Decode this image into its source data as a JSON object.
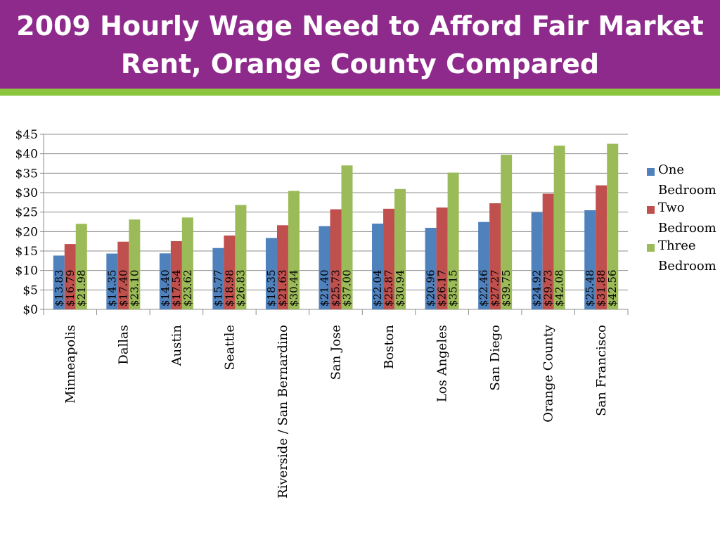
{
  "header": {
    "title": "2009 Hourly Wage Need to Afford Fair Market\nRent,  Orange County Compared",
    "bg_color": "#8e2a8b",
    "rule_color": "#8cc63f"
  },
  "chart_data": {
    "type": "bar",
    "title": "",
    "xlabel": "",
    "ylabel": "",
    "ylim": [
      0,
      45
    ],
    "yticks": [
      "$0",
      "$5",
      "$10",
      "$15",
      "$20",
      "$25",
      "$30",
      "$35",
      "$40",
      "$45"
    ],
    "categories": [
      "Minneapolis",
      "Dallas",
      "Austin",
      "Seattle",
      "Riverside / San Bernardino",
      "San Jose",
      "Boston",
      "Los Angeles",
      "San Diego",
      "Orange County",
      "San Francisco"
    ],
    "series": [
      {
        "name": "One Bedroom",
        "color": "#4f81bd",
        "values": [
          13.83,
          14.35,
          14.4,
          15.77,
          18.35,
          21.4,
          22.04,
          20.96,
          22.46,
          24.92,
          25.48
        ],
        "labels": [
          "$13.83",
          "$14.35",
          "$14.40",
          "$15.77",
          "$18.35",
          "$21.40",
          "$22.04",
          "$20.96",
          "$22.46",
          "$24.92",
          "$25.48"
        ]
      },
      {
        "name": "Two Bedroom",
        "color": "#c0504d",
        "values": [
          16.79,
          17.4,
          17.54,
          18.98,
          21.63,
          25.73,
          25.87,
          26.17,
          27.27,
          29.73,
          31.88
        ],
        "labels": [
          "$16.79",
          "$17.40",
          "$17.54",
          "$18.98",
          "$21.63",
          "$25.73",
          "$25.87",
          "$26.17",
          "$27.27",
          "$29.73",
          "$31.88"
        ]
      },
      {
        "name": "Three Bedroom",
        "color": "#9bbb59",
        "values": [
          21.98,
          23.1,
          23.62,
          26.83,
          30.44,
          37.0,
          30.94,
          35.15,
          39.75,
          42.08,
          42.56
        ],
        "labels": [
          "$21.98",
          "$23.10",
          "$23.62",
          "$26.83",
          "$30.44",
          "$37.00",
          "$30.94",
          "$35.15",
          "$39.75",
          "$42.08",
          "$42.56"
        ]
      }
    ],
    "grid": true,
    "legend_position": "right"
  }
}
